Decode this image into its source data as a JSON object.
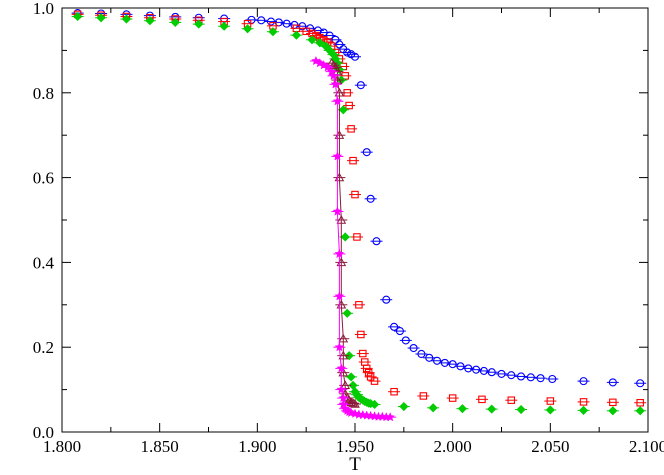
{
  "chart_data": {
    "type": "scatter",
    "title": "",
    "xlabel": "T",
    "ylabel": "",
    "xlim": [
      1.8,
      2.1
    ],
    "ylim": [
      0.0,
      1.0
    ],
    "x_ticks": [
      1.8,
      1.85,
      1.9,
      1.95,
      2.0,
      2.05,
      2.1
    ],
    "x_tick_labels": [
      "1.800",
      "1.850",
      "1.900",
      "1.950",
      "2.000",
      "2.050",
      "2.100"
    ],
    "y_ticks": [
      0.0,
      0.2,
      0.4,
      0.6,
      0.8,
      1.0
    ],
    "y_tick_labels": [
      "0.0",
      "0.2",
      "0.4",
      "0.6",
      "0.8",
      "1.0"
    ],
    "grid": false,
    "legend": "none",
    "series": [
      {
        "name": "blue-circles",
        "marker": "circle",
        "color": "#0000ff",
        "line": false,
        "x": [
          1.808,
          1.82,
          1.833,
          1.845,
          1.858,
          1.87,
          1.883,
          1.897,
          1.902,
          1.907,
          1.911,
          1.915,
          1.919,
          1.923,
          1.927,
          1.931,
          1.934,
          1.937,
          1.94,
          1.942,
          1.944,
          1.946,
          1.948,
          1.95,
          1.953,
          1.956,
          1.958,
          1.961,
          1.966,
          1.97,
          1.973,
          1.976,
          1.98,
          1.984,
          1.988,
          1.992,
          1.996,
          2.0,
          2.004,
          2.008,
          2.012,
          2.016,
          2.02,
          2.025,
          2.03,
          2.035,
          2.04,
          2.045,
          2.051,
          2.067,
          2.082,
          2.096
        ],
        "y": [
          0.988,
          0.987,
          0.985,
          0.982,
          0.979,
          0.977,
          0.975,
          0.972,
          0.971,
          0.968,
          0.966,
          0.963,
          0.96,
          0.957,
          0.952,
          0.947,
          0.942,
          0.935,
          0.925,
          0.914,
          0.903,
          0.895,
          0.891,
          0.885,
          0.818,
          0.66,
          0.55,
          0.45,
          0.312,
          0.248,
          0.238,
          0.216,
          0.198,
          0.184,
          0.175,
          0.168,
          0.163,
          0.16,
          0.155,
          0.15,
          0.147,
          0.144,
          0.141,
          0.137,
          0.134,
          0.131,
          0.129,
          0.127,
          0.125,
          0.12,
          0.117,
          0.115
        ]
      },
      {
        "name": "red-squares",
        "marker": "square",
        "color": "#ff0000",
        "line": false,
        "x": [
          1.808,
          1.82,
          1.833,
          1.845,
          1.858,
          1.87,
          1.883,
          1.895,
          1.908,
          1.92,
          1.925,
          1.928,
          1.93,
          1.932,
          1.934,
          1.936,
          1.938,
          1.94,
          1.942,
          1.944,
          1.945,
          1.946,
          1.947,
          1.948,
          1.949,
          1.95,
          1.951,
          1.952,
          1.953,
          1.954,
          1.955,
          1.956,
          1.957,
          1.958,
          1.96,
          1.97,
          1.985,
          2.0,
          2.015,
          2.03,
          2.05,
          2.067,
          2.082,
          2.096
        ],
        "y": [
          0.985,
          0.983,
          0.98,
          0.977,
          0.974,
          0.971,
          0.968,
          0.963,
          0.958,
          0.952,
          0.945,
          0.94,
          0.935,
          0.93,
          0.925,
          0.92,
          0.91,
          0.895,
          0.88,
          0.862,
          0.84,
          0.8,
          0.77,
          0.715,
          0.64,
          0.56,
          0.46,
          0.3,
          0.23,
          0.185,
          0.165,
          0.15,
          0.14,
          0.13,
          0.12,
          0.095,
          0.085,
          0.08,
          0.077,
          0.075,
          0.073,
          0.071,
          0.07,
          0.069
        ]
      },
      {
        "name": "green-diamonds",
        "marker": "diamond",
        "color": "#00cc00",
        "line": false,
        "x": [
          1.808,
          1.82,
          1.833,
          1.845,
          1.858,
          1.87,
          1.883,
          1.895,
          1.908,
          1.92,
          1.928,
          1.932,
          1.935,
          1.937,
          1.939,
          1.94,
          1.941,
          1.942,
          1.943,
          1.944,
          1.945,
          1.946,
          1.947,
          1.948,
          1.949,
          1.95,
          1.951,
          1.952,
          1.953,
          1.954,
          1.955,
          1.956,
          1.957,
          1.958,
          1.96,
          1.975,
          1.99,
          2.005,
          2.02,
          2.035,
          2.05,
          2.067,
          2.082,
          2.096
        ],
        "y": [
          0.98,
          0.977,
          0.974,
          0.97,
          0.966,
          0.962,
          0.957,
          0.951,
          0.944,
          0.936,
          0.925,
          0.918,
          0.91,
          0.9,
          0.89,
          0.88,
          0.87,
          0.855,
          0.83,
          0.76,
          0.46,
          0.28,
          0.18,
          0.13,
          0.11,
          0.095,
          0.088,
          0.082,
          0.078,
          0.075,
          0.072,
          0.07,
          0.068,
          0.067,
          0.065,
          0.06,
          0.057,
          0.055,
          0.054,
          0.053,
          0.052,
          0.051,
          0.05,
          0.05
        ]
      },
      {
        "name": "maroon-triangles",
        "marker": "triangle",
        "color": "#8b1a3a",
        "line": true,
        "x": [
          1.938,
          1.939,
          1.94,
          1.941,
          1.941,
          1.942,
          1.942,
          1.942,
          1.943,
          1.943,
          1.943,
          1.944,
          1.944,
          1.944,
          1.945,
          1.945,
          1.946,
          1.947,
          1.948,
          1.949,
          1.95
        ],
        "y": [
          0.87,
          0.865,
          0.86,
          0.85,
          0.83,
          0.8,
          0.7,
          0.6,
          0.5,
          0.4,
          0.3,
          0.22,
          0.18,
          0.14,
          0.11,
          0.09,
          0.08,
          0.075,
          0.07,
          0.068,
          0.066
        ]
      },
      {
        "name": "magenta-stars",
        "marker": "star",
        "color": "#ff00ff",
        "line": true,
        "x": [
          1.93,
          1.932,
          1.934,
          1.936,
          1.938,
          1.939,
          1.94,
          1.941,
          1.941,
          1.941,
          1.942,
          1.942,
          1.942,
          1.943,
          1.943,
          1.944,
          1.944,
          1.945,
          1.946,
          1.947,
          1.948,
          1.95,
          1.952,
          1.954,
          1.956,
          1.958,
          1.96,
          1.962,
          1.964,
          1.966,
          1.968
        ],
        "y": [
          0.875,
          0.87,
          0.865,
          0.86,
          0.85,
          0.84,
          0.82,
          0.78,
          0.65,
          0.52,
          0.42,
          0.32,
          0.2,
          0.15,
          0.1,
          0.08,
          0.065,
          0.055,
          0.05,
          0.047,
          0.045,
          0.043,
          0.041,
          0.04,
          0.039,
          0.038,
          0.037,
          0.036,
          0.036,
          0.035,
          0.035
        ]
      }
    ]
  }
}
